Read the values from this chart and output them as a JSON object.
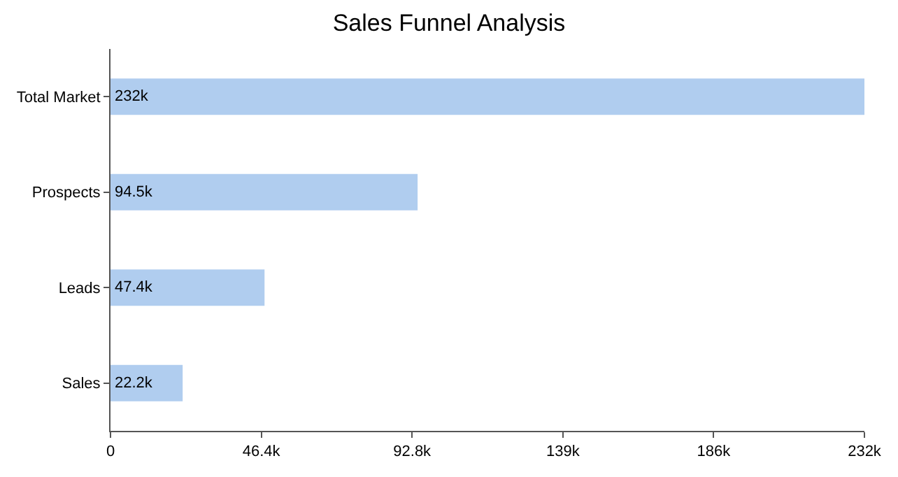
{
  "chart_data": {
    "type": "bar",
    "orientation": "horizontal",
    "title": "Sales Funnel Analysis",
    "categories": [
      "Total Market",
      "Prospects",
      "Leads",
      "Sales"
    ],
    "values": [
      232000,
      94500,
      47400,
      22200
    ],
    "value_labels": [
      "232k",
      "94.5k",
      "47.4k",
      "22.2k"
    ],
    "color": "#b0cdef",
    "xlim": [
      0,
      232000
    ],
    "xticks": [
      0,
      {
        "value": 46400,
        "label": "46.4k"
      },
      {
        "value": 92800,
        "label": "92.8k"
      },
      {
        "value": 139200,
        "label": "139k"
      },
      {
        "value": 185600,
        "label": "186k"
      },
      {
        "value": 232000,
        "label": "232k"
      }
    ],
    "grid": false
  }
}
